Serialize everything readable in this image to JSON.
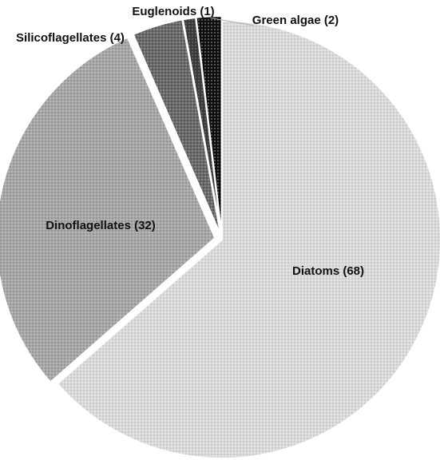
{
  "chart_data": {
    "type": "pie",
    "exploded": true,
    "legend": "none",
    "slices": [
      {
        "label": "Diatoms (68)",
        "name": "Diatoms",
        "value": 68,
        "color": "#dcdcdc",
        "pattern": "fine-dots-light"
      },
      {
        "label": "Dinoflagellates (32)",
        "name": "Dinoflagellates",
        "value": 32,
        "color": "#a9a9a9",
        "pattern": "fine-dots-medium"
      },
      {
        "label": "Silicoflagellates (4)",
        "name": "Silicoflagellates",
        "value": 4,
        "color": "#6e6e6e",
        "pattern": "dots-dark"
      },
      {
        "label": "Euglenoids (1)",
        "name": "Euglenoids",
        "value": 1,
        "color": "#3a3a3a",
        "pattern": "dots-darker"
      },
      {
        "label": "Green algae (2)",
        "name": "Green algae",
        "value": 2,
        "color": "#141414",
        "pattern": "dots-black"
      }
    ]
  }
}
